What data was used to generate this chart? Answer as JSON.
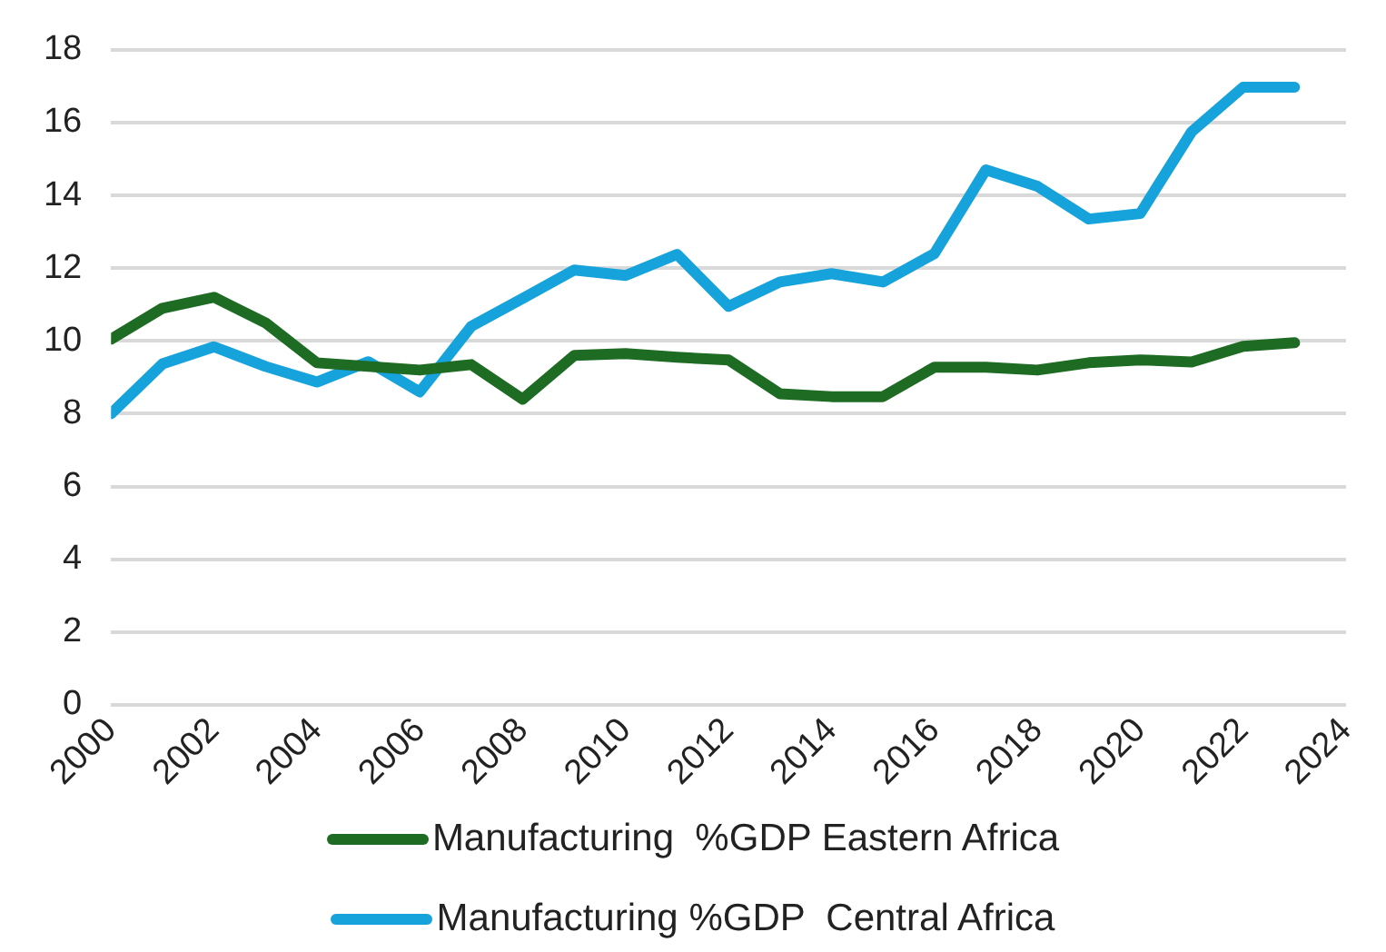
{
  "chart_data": {
    "type": "line",
    "x": [
      2000,
      2001,
      2002,
      2003,
      2004,
      2005,
      2006,
      2007,
      2008,
      2009,
      2010,
      2011,
      2012,
      2013,
      2014,
      2015,
      2016,
      2017,
      2018,
      2019,
      2020,
      2021,
      2022,
      2023
    ],
    "series": [
      {
        "name": "Manufacturing  %GDP Eastern Africa",
        "color": "#1e6b23",
        "values": [
          10.05,
          10.9,
          11.2,
          10.5,
          9.4,
          9.3,
          9.2,
          9.35,
          8.4,
          9.6,
          9.65,
          9.55,
          9.48,
          8.55,
          8.47,
          8.47,
          9.28,
          9.28,
          9.2,
          9.4,
          9.48,
          9.42,
          9.85,
          9.95
        ]
      },
      {
        "name": "Manufacturing %GDP  Central Africa",
        "color": "#16a3dc",
        "values": [
          8.0,
          9.37,
          9.84,
          9.3,
          8.87,
          9.43,
          8.6,
          10.4,
          11.17,
          11.95,
          11.8,
          12.38,
          10.95,
          11.62,
          11.85,
          11.62,
          12.4,
          14.7,
          14.25,
          13.35,
          13.5,
          15.75,
          16.97,
          16.97
        ]
      }
    ],
    "xlim": [
      2000,
      2024
    ],
    "xticks": [
      2000,
      2002,
      2004,
      2006,
      2008,
      2010,
      2012,
      2014,
      2016,
      2018,
      2020,
      2022,
      2024
    ],
    "ylim": [
      0,
      18
    ],
    "yticks": [
      0,
      2,
      4,
      6,
      8,
      10,
      12,
      14,
      16,
      18
    ],
    "grid": "y",
    "legend": "bottom",
    "marker": "none",
    "line_style": "solid"
  }
}
